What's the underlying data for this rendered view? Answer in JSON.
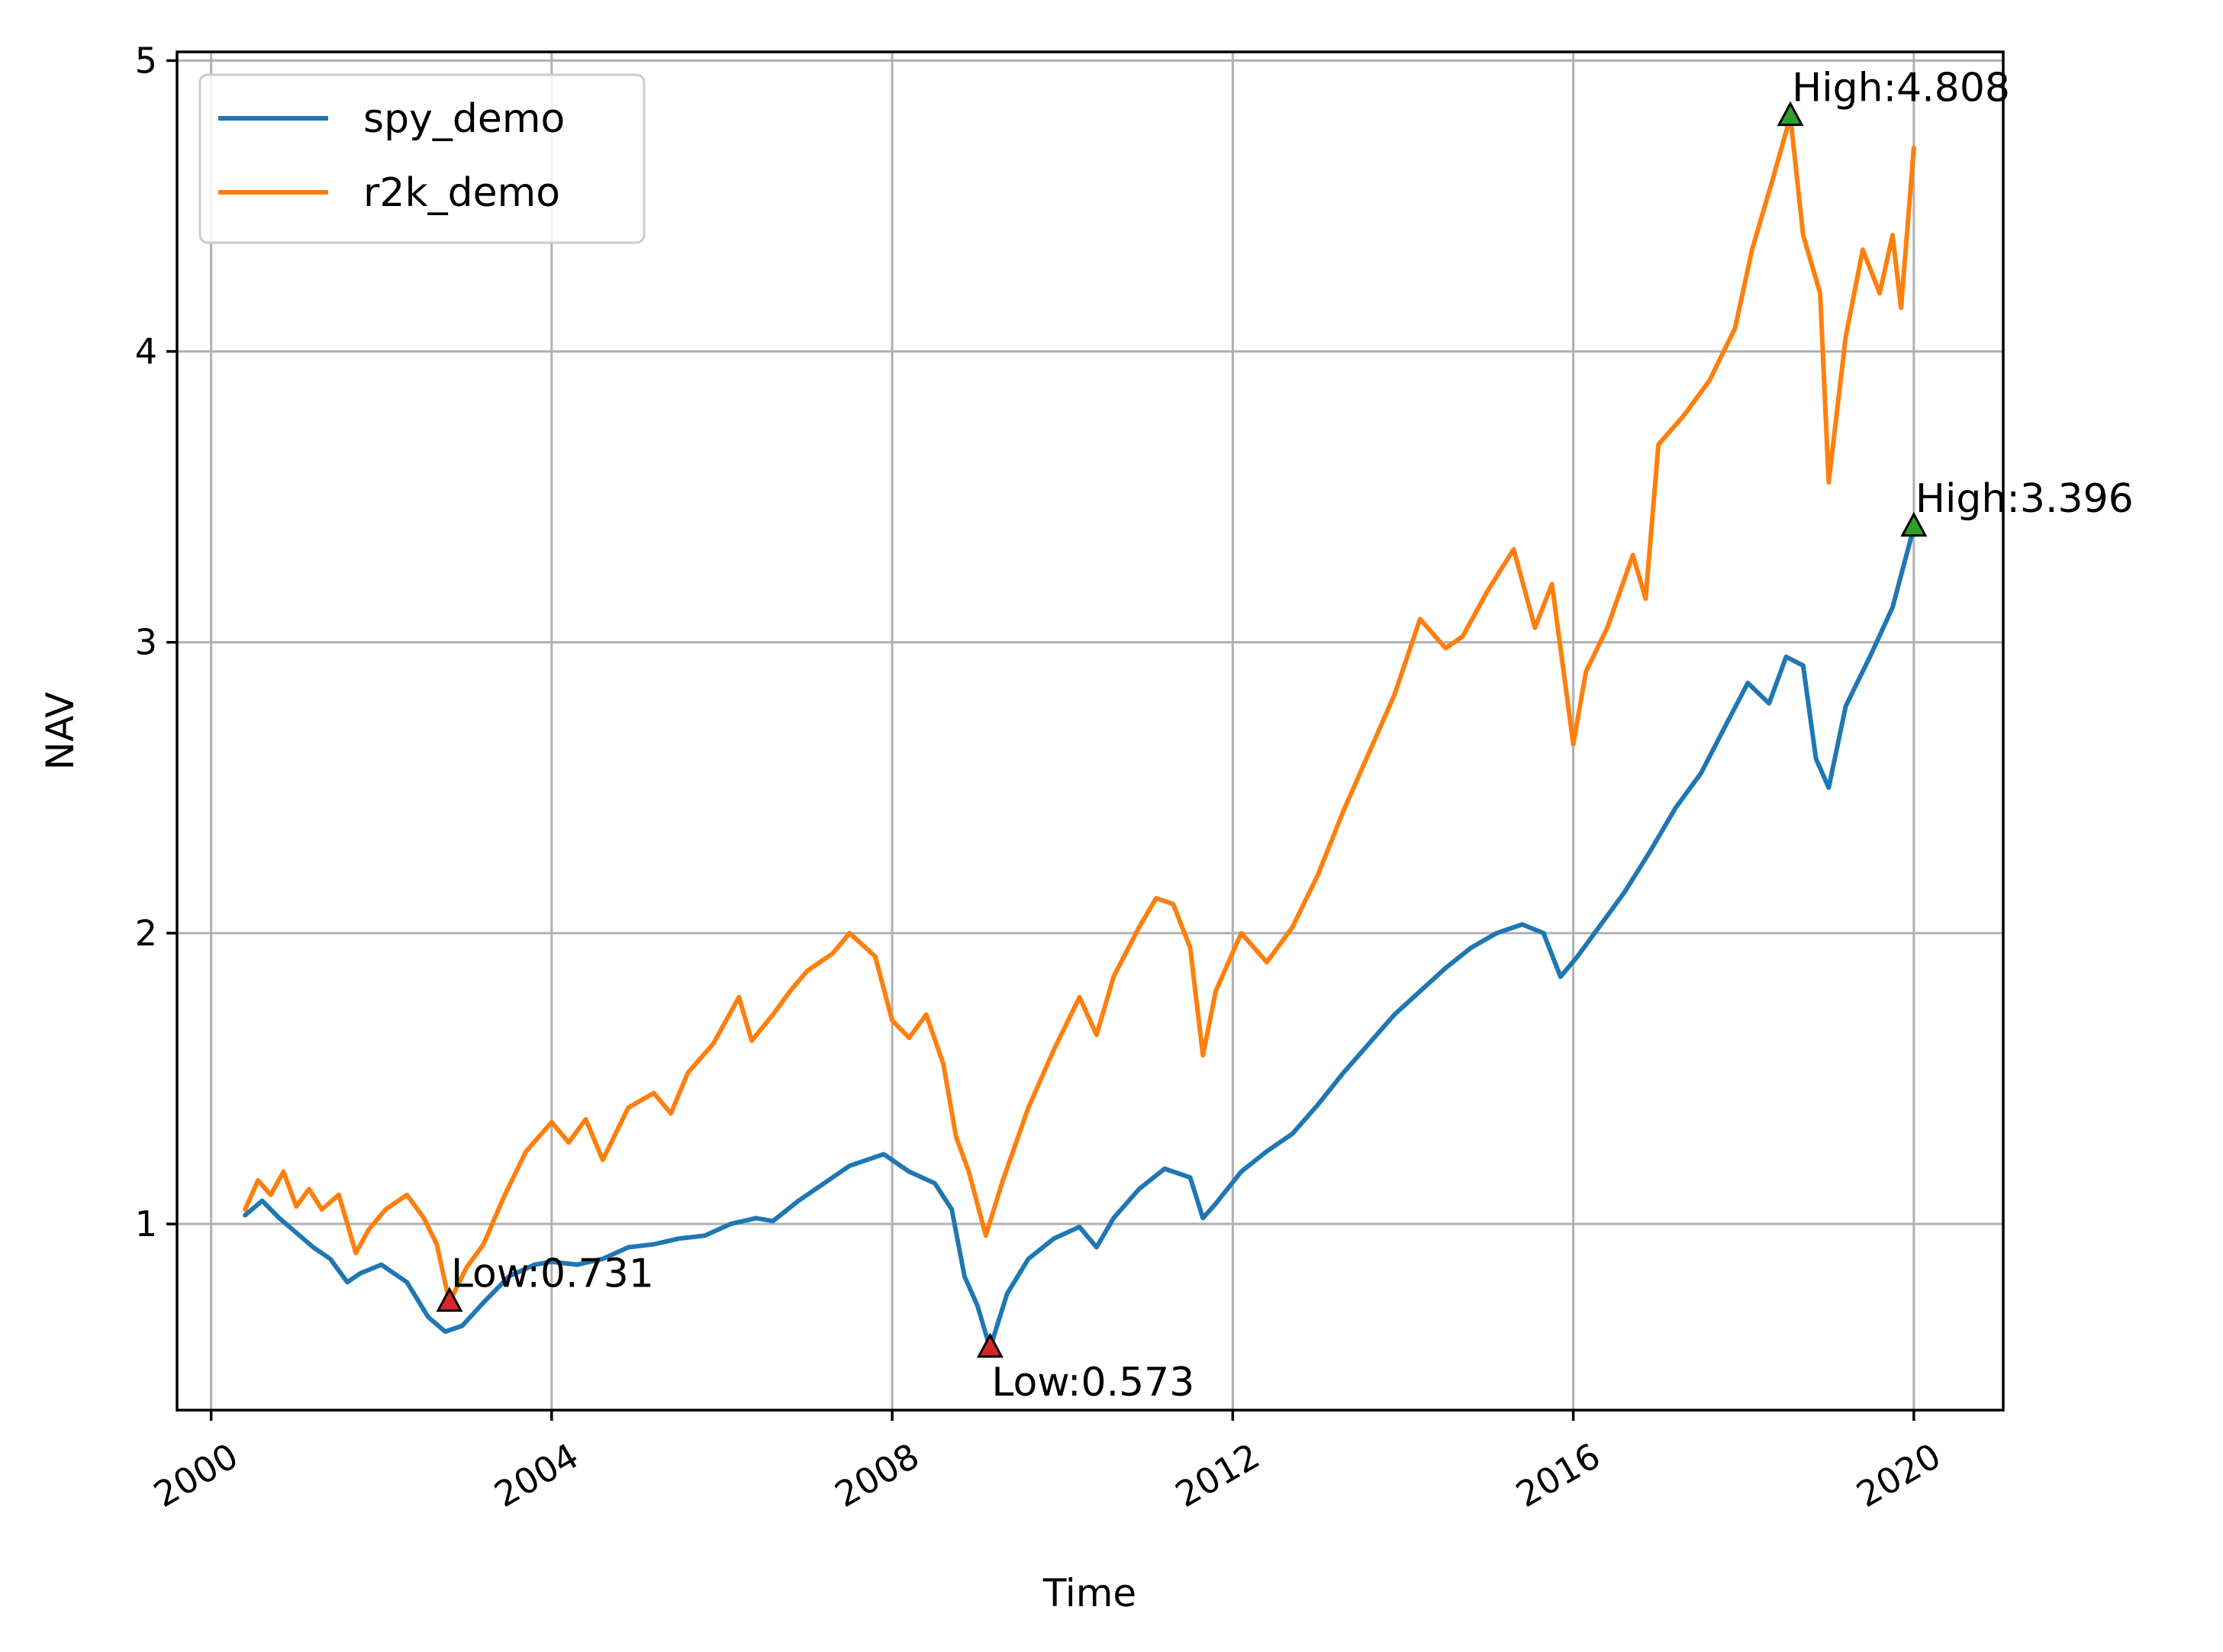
{
  "chart_data": {
    "type": "line",
    "title": "",
    "xlabel": "Time",
    "ylabel": "NAV",
    "xlim": [
      1999.6,
      2021.05
    ],
    "ylim": [
      0.36,
      5.03
    ],
    "x_ticks": [
      2000,
      2004,
      2008,
      2012,
      2016,
      2020
    ],
    "x_tick_labels": [
      "2000",
      "2004",
      "2008",
      "2012",
      "2016",
      "2020"
    ],
    "y_ticks": [
      1,
      2,
      3,
      4,
      5
    ],
    "y_tick_labels": [
      "1",
      "2",
      "3",
      "4",
      "5"
    ],
    "grid": true,
    "legend": {
      "position": "upper-left"
    },
    "series": [
      {
        "name": "spy_demo",
        "color": "#1f77b4",
        "x": [
          2000.4,
          2000.6,
          2000.8,
          2001.0,
          2001.2,
          2001.4,
          2001.6,
          2001.75,
          2002.0,
          2002.3,
          2002.55,
          2002.75,
          2002.95,
          2003.2,
          2003.5,
          2003.8,
          2004.0,
          2004.3,
          2004.6,
          2004.9,
          2005.2,
          2005.5,
          2005.8,
          2006.1,
          2006.4,
          2006.6,
          2006.9,
          2007.2,
          2007.5,
          2007.7,
          2007.9,
          2008.2,
          2008.5,
          2008.7,
          2008.85,
          2009.0,
          2009.15,
          2009.35,
          2009.6,
          2009.9,
          2010.2,
          2010.4,
          2010.6,
          2010.9,
          2011.2,
          2011.5,
          2011.65,
          2011.8,
          2012.1,
          2012.4,
          2012.7,
          2013.0,
          2013.3,
          2013.6,
          2013.9,
          2014.2,
          2014.5,
          2014.8,
          2015.1,
          2015.4,
          2015.65,
          2015.85,
          2016.05,
          2016.3,
          2016.6,
          2016.9,
          2017.2,
          2017.5,
          2017.8,
          2018.05,
          2018.3,
          2018.5,
          2018.7,
          2018.85,
          2019.0,
          2019.2,
          2019.5,
          2019.75,
          2020.0
        ],
        "values": [
          1.03,
          1.08,
          1.02,
          0.97,
          0.92,
          0.88,
          0.8,
          0.83,
          0.86,
          0.8,
          0.68,
          0.63,
          0.65,
          0.73,
          0.82,
          0.86,
          0.87,
          0.86,
          0.88,
          0.92,
          0.93,
          0.95,
          0.96,
          1.0,
          1.02,
          1.01,
          1.08,
          1.14,
          1.2,
          1.22,
          1.24,
          1.18,
          1.14,
          1.05,
          0.82,
          0.72,
          0.573,
          0.76,
          0.88,
          0.95,
          0.99,
          0.92,
          1.02,
          1.12,
          1.19,
          1.16,
          1.02,
          1.07,
          1.18,
          1.25,
          1.31,
          1.41,
          1.52,
          1.62,
          1.72,
          1.8,
          1.88,
          1.95,
          2.0,
          2.03,
          2.0,
          1.85,
          1.92,
          2.02,
          2.14,
          2.28,
          2.43,
          2.55,
          2.72,
          2.86,
          2.79,
          2.95,
          2.92,
          2.6,
          2.5,
          2.78,
          2.96,
          3.12,
          3.396
        ],
        "annotations": [
          {
            "x": 2009.15,
            "y": 0.573,
            "label": "Low:0.573",
            "color": "#d62728"
          },
          {
            "x": 2020.0,
            "y": 3.396,
            "label": "High:3.396",
            "color": "#2ca02c"
          }
        ]
      },
      {
        "name": "r2k_demo",
        "color": "#ff7f0e",
        "x": [
          2000.4,
          2000.55,
          2000.7,
          2000.85,
          2001.0,
          2001.15,
          2001.3,
          2001.5,
          2001.7,
          2001.85,
          2002.05,
          2002.3,
          2002.5,
          2002.65,
          2002.8,
          2003.0,
          2003.2,
          2003.45,
          2003.7,
          2004.0,
          2004.2,
          2004.4,
          2004.6,
          2004.9,
          2005.2,
          2005.4,
          2005.6,
          2005.9,
          2006.2,
          2006.35,
          2006.6,
          2006.8,
          2007.0,
          2007.3,
          2007.5,
          2007.8,
          2008.0,
          2008.2,
          2008.4,
          2008.6,
          2008.75,
          2008.9,
          2009.1,
          2009.3,
          2009.6,
          2009.9,
          2010.2,
          2010.4,
          2010.6,
          2010.9,
          2011.1,
          2011.3,
          2011.5,
          2011.65,
          2011.8,
          2012.1,
          2012.4,
          2012.7,
          2013.0,
          2013.3,
          2013.6,
          2013.9,
          2014.2,
          2014.5,
          2014.7,
          2015.0,
          2015.3,
          2015.55,
          2015.75,
          2016.0,
          2016.15,
          2016.4,
          2016.7,
          2016.85,
          2017.0,
          2017.3,
          2017.6,
          2017.9,
          2018.1,
          2018.35,
          2018.55,
          2018.7,
          2018.9,
          2019.0,
          2019.2,
          2019.4,
          2019.6,
          2019.75,
          2019.85,
          2020.0
        ],
        "values": [
          1.05,
          1.15,
          1.1,
          1.18,
          1.06,
          1.12,
          1.05,
          1.1,
          0.9,
          0.98,
          1.05,
          1.1,
          1.02,
          0.93,
          0.731,
          0.85,
          0.93,
          1.1,
          1.25,
          1.35,
          1.28,
          1.36,
          1.22,
          1.4,
          1.45,
          1.38,
          1.52,
          1.62,
          1.78,
          1.63,
          1.72,
          1.8,
          1.87,
          1.93,
          2.0,
          1.92,
          1.7,
          1.64,
          1.72,
          1.55,
          1.3,
          1.18,
          0.96,
          1.15,
          1.4,
          1.6,
          1.78,
          1.65,
          1.85,
          2.02,
          2.12,
          2.1,
          1.95,
          1.58,
          1.8,
          2.0,
          1.9,
          2.02,
          2.2,
          2.42,
          2.62,
          2.82,
          3.08,
          2.98,
          3.02,
          3.18,
          3.32,
          3.05,
          3.2,
          2.65,
          2.9,
          3.05,
          3.3,
          3.15,
          3.68,
          3.78,
          3.9,
          4.08,
          4.35,
          4.6,
          4.808,
          4.4,
          4.2,
          3.55,
          4.05,
          4.35,
          4.2,
          4.4,
          4.15,
          4.7
        ],
        "annotations": [
          {
            "x": 2002.8,
            "y": 0.731,
            "label": "Low:0.731",
            "color": "#d62728"
          },
          {
            "x": 2018.55,
            "y": 4.808,
            "label": "High:4.808",
            "color": "#2ca02c"
          }
        ]
      }
    ]
  }
}
